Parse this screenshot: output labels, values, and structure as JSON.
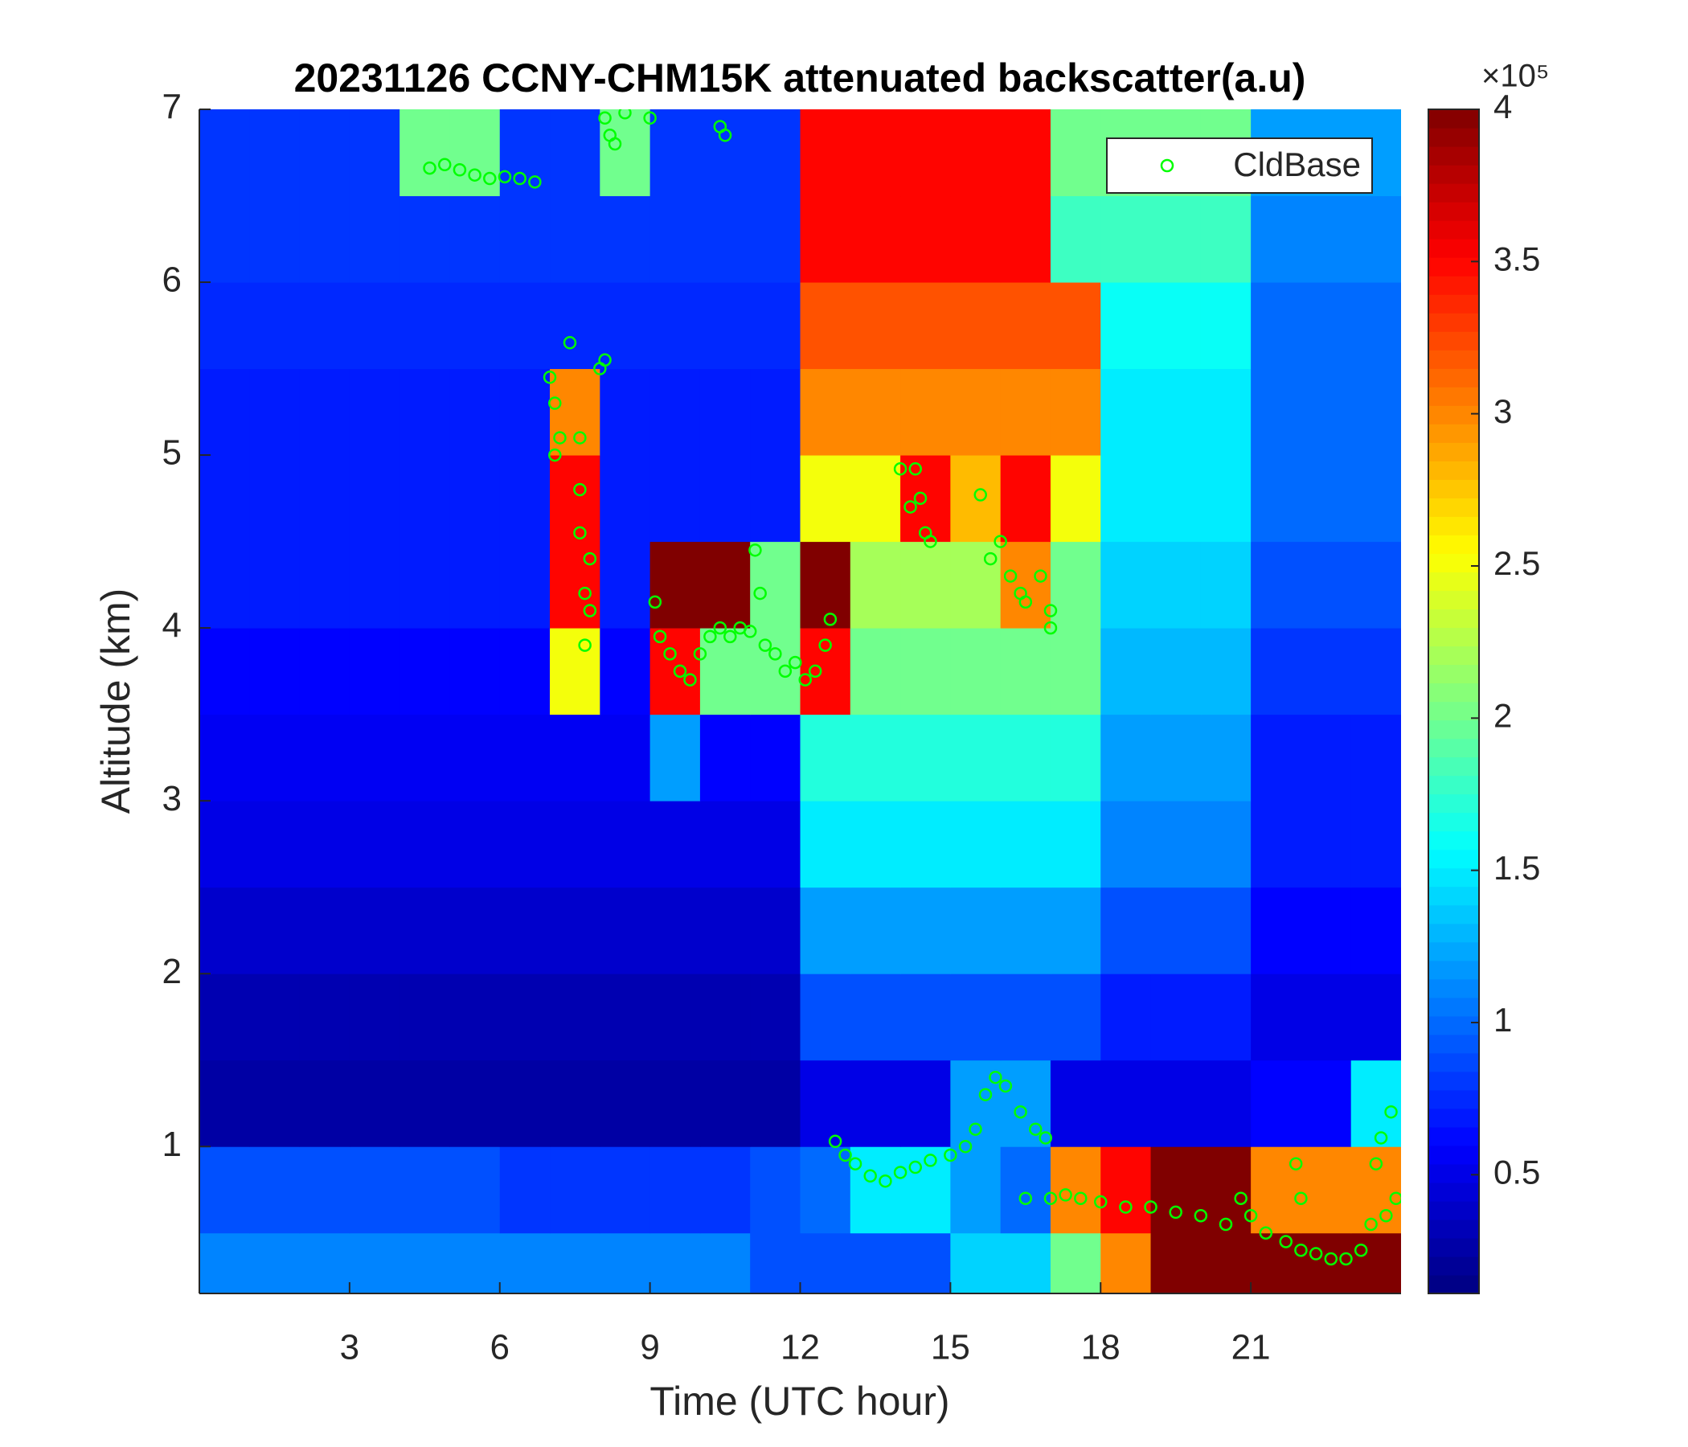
{
  "chart_data": {
    "type": "heatmap",
    "title": "20231126 CCNY-CHM15K attenuated backscatter(a.u)",
    "xlabel": "Time (UTC hour)",
    "ylabel": "Altitude (km)",
    "xlim": [
      0,
      24
    ],
    "xticks": [
      3,
      6,
      9,
      12,
      15,
      18,
      21
    ],
    "ylim": [
      0.15,
      7
    ],
    "yticks": [
      1,
      2,
      3,
      4,
      5,
      6,
      7
    ],
    "colormap": "jet",
    "clim": [
      0.11,
      4
    ],
    "cticks": [
      0.5,
      1,
      1.5,
      2,
      2.5,
      3,
      3.5,
      4
    ],
    "colorbar_label": "×10⁵",
    "legend": "upper right",
    "heatmap": {
      "x": [
        0.5,
        1.5,
        2.5,
        3.5,
        4.5,
        5.5,
        6.5,
        7.5,
        8.5,
        9.5,
        10.5,
        11.5,
        12.5,
        13.5,
        14.5,
        15.5,
        16.5,
        17.5,
        18.5,
        19.5,
        20.5,
        21.5,
        22.5,
        23.5
      ],
      "y": [
        0.25,
        0.75,
        1.25,
        1.75,
        2.25,
        2.75,
        3.25,
        3.75,
        4.25,
        4.75,
        5.25,
        5.75,
        6.25,
        6.75
      ],
      "z": [
        [
          1.1,
          1.1,
          1.1,
          1.1,
          1.1,
          1.1,
          1.1,
          1.1,
          1.1,
          1.1,
          1.1,
          0.9,
          0.9,
          0.9,
          0.9,
          1.4,
          1.4,
          2,
          3,
          4,
          4,
          4,
          4,
          4
        ],
        [
          0.9,
          0.9,
          0.9,
          0.9,
          0.9,
          0.9,
          0.8,
          0.8,
          0.8,
          0.8,
          0.8,
          0.9,
          1.0,
          1.5,
          1.5,
          1.2,
          1.0,
          3,
          3.5,
          4,
          4,
          3,
          3,
          3
        ],
        [
          0.25,
          0.25,
          0.25,
          0.25,
          0.25,
          0.25,
          0.25,
          0.25,
          0.25,
          0.25,
          0.25,
          0.25,
          0.5,
          0.5,
          0.5,
          1.2,
          1.2,
          0.5,
          0.5,
          0.5,
          0.5,
          0.6,
          0.6,
          1.5
        ],
        [
          0.3,
          0.3,
          0.3,
          0.3,
          0.3,
          0.3,
          0.3,
          0.3,
          0.3,
          0.3,
          0.3,
          0.3,
          0.9,
          0.9,
          0.9,
          0.9,
          0.9,
          0.9,
          0.7,
          0.7,
          0.7,
          0.5,
          0.5,
          0.5
        ],
        [
          0.4,
          0.4,
          0.4,
          0.4,
          0.4,
          0.4,
          0.4,
          0.4,
          0.4,
          0.4,
          0.4,
          0.4,
          1.2,
          1.2,
          1.2,
          1.2,
          1.2,
          1.2,
          0.9,
          0.9,
          0.9,
          0.6,
          0.6,
          0.6
        ],
        [
          0.5,
          0.5,
          0.5,
          0.5,
          0.5,
          0.5,
          0.5,
          0.5,
          0.5,
          0.5,
          0.5,
          0.5,
          1.5,
          1.5,
          1.5,
          1.5,
          1.5,
          1.5,
          1.1,
          1.1,
          1.1,
          0.7,
          0.7,
          0.7
        ],
        [
          0.55,
          0.55,
          0.55,
          0.55,
          0.55,
          0.55,
          0.55,
          0.55,
          0.55,
          1.2,
          0.6,
          0.6,
          1.7,
          1.7,
          1.7,
          1.7,
          1.7,
          1.7,
          1.2,
          1.2,
          1.2,
          0.7,
          0.7,
          0.7
        ],
        [
          0.6,
          0.6,
          0.6,
          0.6,
          0.6,
          0.6,
          0.6,
          2.5,
          0.6,
          3.5,
          2,
          2,
          3.5,
          2,
          2,
          2,
          2,
          2,
          1.3,
          1.3,
          1.3,
          0.8,
          0.8,
          0.8
        ],
        [
          0.7,
          0.7,
          0.7,
          0.7,
          0.7,
          0.7,
          0.7,
          3.5,
          0.7,
          4,
          4,
          2,
          4,
          2.2,
          2.2,
          2.2,
          3,
          2,
          1.4,
          1.4,
          1.4,
          0.9,
          0.9,
          0.9
        ],
        [
          0.7,
          0.7,
          0.7,
          0.7,
          0.7,
          0.7,
          0.7,
          3.5,
          0.7,
          0.7,
          0.7,
          0.7,
          2.5,
          2.5,
          3.5,
          2.8,
          3.5,
          2.5,
          1.5,
          1.5,
          1.5,
          1,
          1,
          1
        ],
        [
          0.7,
          0.7,
          0.7,
          0.7,
          0.7,
          0.7,
          0.7,
          3,
          0.7,
          0.7,
          0.7,
          0.7,
          3,
          3,
          3,
          3,
          3,
          3,
          1.5,
          1.5,
          1.5,
          1,
          1,
          1
        ],
        [
          0.75,
          0.75,
          0.75,
          0.75,
          0.75,
          0.75,
          0.75,
          0.75,
          0.75,
          0.75,
          0.75,
          0.75,
          3.2,
          3.2,
          3.2,
          3.2,
          3.2,
          3.2,
          1.6,
          1.6,
          1.6,
          1,
          1,
          1
        ],
        [
          0.8,
          0.8,
          0.8,
          0.8,
          0.8,
          0.8,
          0.8,
          0.8,
          0.8,
          0.8,
          0.8,
          0.8,
          3.5,
          3.5,
          3.5,
          3.5,
          3.5,
          1.8,
          1.8,
          1.8,
          1.8,
          1.1,
          1.1,
          1.1
        ],
        [
          0.8,
          0.8,
          0.8,
          0.8,
          2,
          2,
          0.8,
          0.8,
          2,
          0.8,
          0.8,
          0.8,
          3.5,
          3.5,
          3.5,
          3.5,
          3.5,
          2,
          2,
          2,
          2,
          1.2,
          1.2,
          1.2
        ]
      ]
    },
    "series": [
      {
        "name": "CldBase",
        "color": "#00ff00",
        "x": [
          4.6,
          4.9,
          5.2,
          5.5,
          5.8,
          6.1,
          6.4,
          6.7,
          8.1,
          8.2,
          8.3,
          8.5,
          9.0,
          10.4,
          10.5,
          7.0,
          7.1,
          7.2,
          7.1,
          7.4,
          7.6,
          7.6,
          7.6,
          7.8,
          7.8,
          7.7,
          7.7,
          8.0,
          8.1,
          9.1,
          9.2,
          9.4,
          9.6,
          9.8,
          10.0,
          10.2,
          10.4,
          10.6,
          10.8,
          11.0,
          11.2,
          11.3,
          11.5,
          11.7,
          11.9,
          12.1,
          12.3,
          12.5,
          12.6,
          11.1,
          14.0,
          14.3,
          14.4,
          14.5,
          14.6,
          14.2,
          15.6,
          15.8,
          16.0,
          16.2,
          16.4,
          16.5,
          16.8,
          17.0,
          17.0,
          12.7,
          12.9,
          13.1,
          13.4,
          13.7,
          14.0,
          14.3,
          14.6,
          15.0,
          15.3,
          15.5,
          15.7,
          15.9,
          16.1,
          16.4,
          16.7,
          16.9,
          16.5,
          17.0,
          17.3,
          17.6,
          18.0,
          18.5,
          19.0,
          19.5,
          20.0,
          20.5,
          20.8,
          21.0,
          21.3,
          21.7,
          22.0,
          22.3,
          22.6,
          22.9,
          23.2,
          23.4,
          23.5,
          23.6,
          23.8,
          23.9,
          23.7,
          22.0,
          21.9
        ],
        "y": [
          6.66,
          6.68,
          6.65,
          6.62,
          6.6,
          6.61,
          6.6,
          6.58,
          6.95,
          6.85,
          6.8,
          6.98,
          6.95,
          6.9,
          6.85,
          5.45,
          5.3,
          5.1,
          5.0,
          5.65,
          5.1,
          4.8,
          4.55,
          4.4,
          4.1,
          3.9,
          4.2,
          5.5,
          5.55,
          4.15,
          3.95,
          3.85,
          3.75,
          3.7,
          3.85,
          3.95,
          4.0,
          3.95,
          4.0,
          3.98,
          4.2,
          3.9,
          3.85,
          3.75,
          3.8,
          3.7,
          3.75,
          3.9,
          4.05,
          4.45,
          4.92,
          4.92,
          4.75,
          4.55,
          4.5,
          4.7,
          4.77,
          4.4,
          4.5,
          4.3,
          4.2,
          4.15,
          4.3,
          4.1,
          4.0,
          1.03,
          0.95,
          0.9,
          0.83,
          0.8,
          0.85,
          0.88,
          0.92,
          0.95,
          1.0,
          1.1,
          1.3,
          1.4,
          1.35,
          1.2,
          1.1,
          1.05,
          0.7,
          0.7,
          0.72,
          0.7,
          0.68,
          0.65,
          0.65,
          0.62,
          0.6,
          0.55,
          0.7,
          0.6,
          0.5,
          0.45,
          0.4,
          0.38,
          0.35,
          0.35,
          0.4,
          0.55,
          0.9,
          1.05,
          1.2,
          0.7,
          0.6,
          0.7,
          0.9
        ]
      }
    ]
  }
}
